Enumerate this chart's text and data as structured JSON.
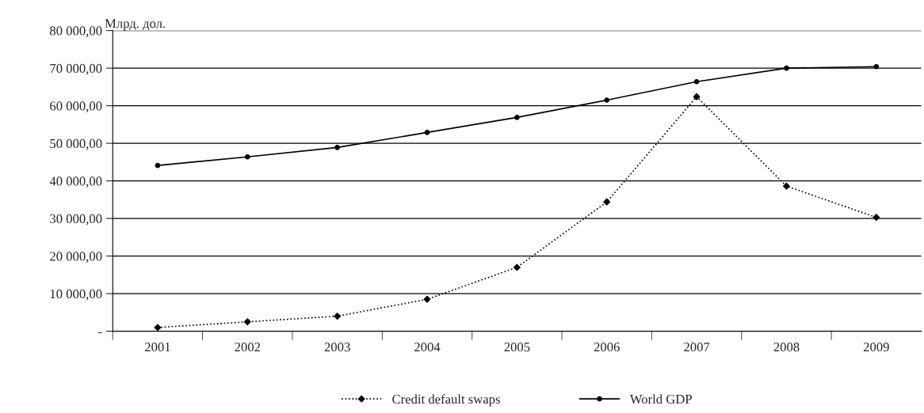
{
  "chart_data": {
    "type": "line",
    "ylabel": "Млрд. дол.",
    "categories": [
      "2001",
      "2002",
      "2003",
      "2004",
      "2005",
      "2006",
      "2007",
      "2008",
      "2009"
    ],
    "series": [
      {
        "name": "Credit default swaps",
        "color": "#000000",
        "marker": "diamond",
        "line_style": "dotted",
        "values": [
          1000,
          2500,
          4000,
          8500,
          17000,
          34400,
          62400,
          38600,
          30300
        ]
      },
      {
        "name": "World GDP",
        "color": "#000000",
        "marker": "circle",
        "line_style": "solid",
        "values": [
          44100,
          46400,
          48900,
          52900,
          56900,
          61500,
          66400,
          70000,
          70400
        ]
      }
    ],
    "ylim": [
      0,
      80000
    ],
    "yticks": [
      {
        "value": 0,
        "label": "-"
      },
      {
        "value": 10000,
        "label": "10 000,00"
      },
      {
        "value": 20000,
        "label": "20 000,00"
      },
      {
        "value": 30000,
        "label": "30 000,00"
      },
      {
        "value": 40000,
        "label": "40 000,00"
      },
      {
        "value": 50000,
        "label": "50 000,00"
      },
      {
        "value": 60000,
        "label": "60 000,00"
      },
      {
        "value": 70000,
        "label": "70 000,00"
      },
      {
        "value": 80000,
        "label": "80 000,00"
      }
    ],
    "grid": "y",
    "legend": "bottom"
  }
}
